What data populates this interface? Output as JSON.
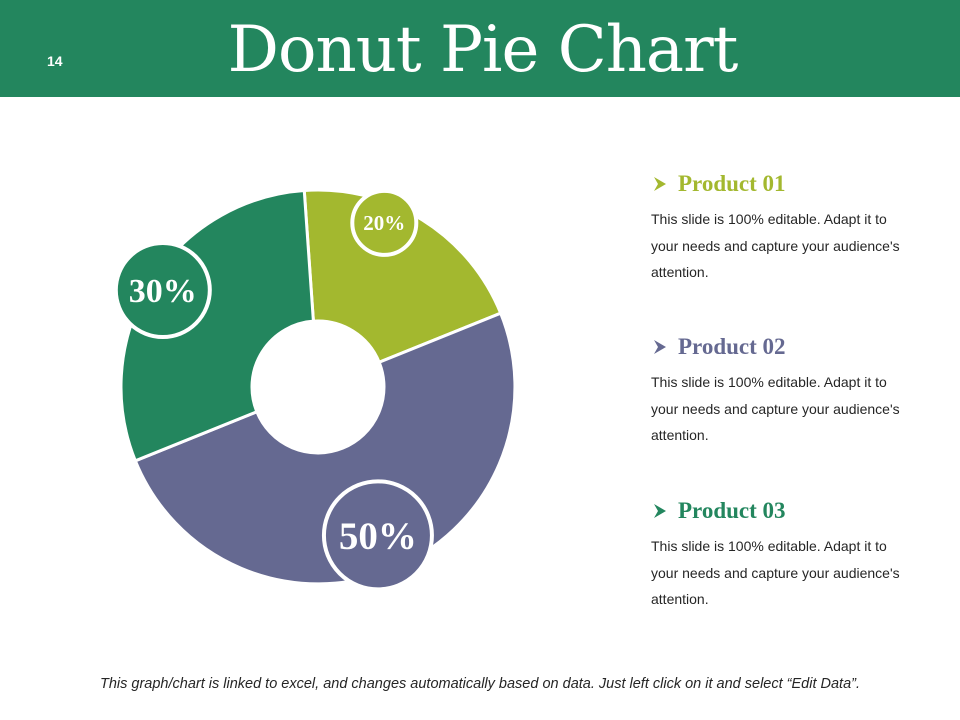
{
  "slide": {
    "number": "14",
    "title": "Donut Pie Chart",
    "footnote": "This graph/chart is linked to excel, and changes automatically based on data. Just left click on it and select “Edit Data”."
  },
  "colors": {
    "header": "#23865e",
    "product_01": "#a3b82f",
    "product_02": "#656991",
    "product_03": "#23865e"
  },
  "legend": [
    {
      "name": "Product 01",
      "desc": "This slide is 100% editable. Adapt it to your needs and capture your audience's attention.",
      "color": "#a3b82f",
      "icon": "chevron-right-icon"
    },
    {
      "name": "Product 02",
      "desc": "This slide is 100% editable. Adapt it to your needs and capture your audience's attention.",
      "color": "#656991",
      "icon": "chevron-right-icon"
    },
    {
      "name": "Product 03",
      "desc": "This slide is 100% editable. Adapt it to your needs and capture your audience's attention.",
      "color": "#23865e",
      "icon": "chevron-right-icon"
    }
  ],
  "chart_data": {
    "type": "pie",
    "variant": "donut",
    "categories": [
      "Product 01",
      "Product 02",
      "Product 03"
    ],
    "values": [
      20,
      50,
      30
    ],
    "data_labels": [
      "20%",
      "50%",
      "30%"
    ],
    "colors": [
      "#a3b82f",
      "#656991",
      "#23865e"
    ],
    "legend": "right"
  }
}
